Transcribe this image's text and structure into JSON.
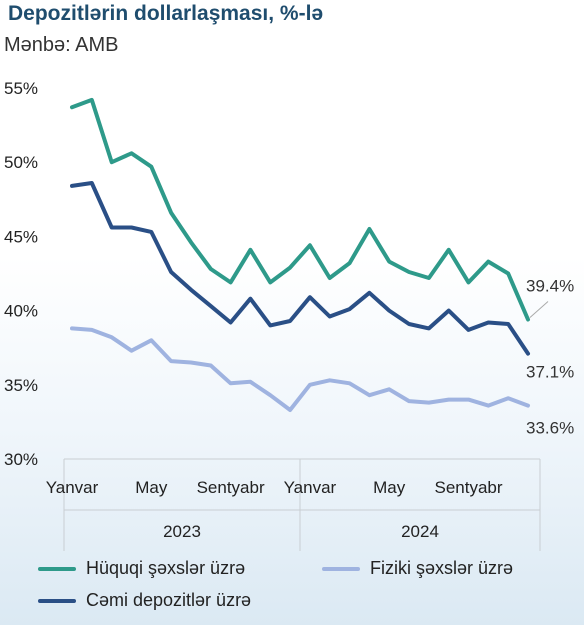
{
  "title": "Depozitlərin dollarlaşması, %-lə",
  "source": "Mənbə: AMB",
  "chart_data": {
    "type": "line",
    "title": "Depozitlərin dollarlaşması, %-lə",
    "ylim": [
      30,
      55
    ],
    "yticks": [
      {
        "value": 55,
        "label": "55%"
      },
      {
        "value": 50,
        "label": "50%"
      },
      {
        "value": 45,
        "label": "45%"
      },
      {
        "value": 40,
        "label": "40%"
      },
      {
        "value": 35,
        "label": "35%"
      },
      {
        "value": 30,
        "label": "30%"
      }
    ],
    "x": [
      "2023-01",
      "2023-02",
      "2023-03",
      "2023-04",
      "2023-05",
      "2023-06",
      "2023-07",
      "2023-08",
      "2023-09",
      "2023-10",
      "2023-11",
      "2023-12",
      "2024-01",
      "2024-02",
      "2024-03",
      "2024-04",
      "2024-05",
      "2024-06",
      "2024-07",
      "2024-08",
      "2024-09",
      "2024-10",
      "2024-11",
      "2024-12"
    ],
    "xtick_labels": [
      {
        "index": 0,
        "label": "Yanvar"
      },
      {
        "index": 4,
        "label": "May"
      },
      {
        "index": 8,
        "label": "Sentyabr"
      },
      {
        "index": 12,
        "label": "Yanvar"
      },
      {
        "index": 16,
        "label": "May"
      },
      {
        "index": 20,
        "label": "Sentyabr"
      }
    ],
    "years": [
      {
        "label": "2023",
        "start": 0,
        "end": 11
      },
      {
        "label": "2024",
        "start": 12,
        "end": 23
      }
    ],
    "grid": false,
    "legend_position": "bottom",
    "series": [
      {
        "name": "Hüquqi şəxslər üzrə",
        "color": "#2e9a8a",
        "values": [
          53.7,
          54.2,
          50.0,
          50.6,
          49.7,
          46.6,
          44.6,
          42.8,
          41.9,
          44.1,
          41.9,
          42.9,
          44.4,
          42.2,
          43.2,
          45.5,
          43.3,
          42.6,
          42.2,
          44.1,
          41.9,
          43.3,
          42.5,
          39.4
        ],
        "end_label": "39.4%"
      },
      {
        "name": "Fiziki şəxslər üzrə",
        "color": "#9fb3e0",
        "values": [
          38.8,
          38.7,
          38.2,
          37.3,
          38.0,
          36.6,
          36.5,
          36.3,
          35.1,
          35.2,
          34.3,
          33.3,
          35.0,
          35.3,
          35.1,
          34.3,
          34.7,
          33.9,
          33.8,
          34.0,
          34.0,
          33.6,
          34.1,
          33.6
        ],
        "end_label": "33.6%"
      },
      {
        "name": "Cəmi depozitlər üzrə",
        "color": "#2a4f86",
        "values": [
          48.4,
          48.6,
          45.6,
          45.6,
          45.3,
          42.6,
          41.4,
          40.3,
          39.2,
          40.8,
          39.0,
          39.3,
          40.9,
          39.6,
          40.1,
          41.2,
          40.0,
          39.1,
          38.8,
          40.0,
          38.7,
          39.2,
          39.1,
          37.1
        ],
        "end_label": "37.1%"
      }
    ]
  }
}
